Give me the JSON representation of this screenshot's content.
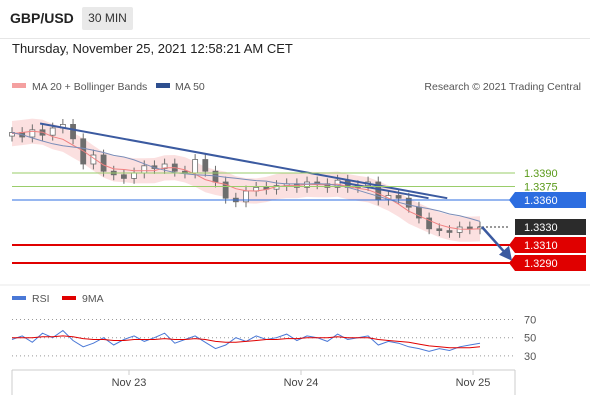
{
  "header": {
    "symbol": "GBP/USD",
    "timeframe": "30 MIN"
  },
  "datetime": "Thursday, November 25, 2021 12:58:21 AM CET",
  "legend": {
    "ma20": "MA 20 + Bollinger Bands",
    "ma50": "MA 50",
    "credit": "Research © 2021 Trading Central",
    "rsi": "RSI",
    "ma9": "9MA"
  },
  "colors": {
    "candle": "#6e6e6e",
    "ma20": "#f08080",
    "bollinger": "#f7c6c6",
    "ma50": "#7a8db8",
    "trendline": "#3b5aa0",
    "support": "#e00000",
    "resistance": "#2c6de0",
    "green_level": "#9acd6a",
    "rsi": "#4a78d6",
    "ma9": "#e00000"
  },
  "chart_data": [
    {
      "type": "candlestick",
      "ylim": [
        1.328,
        1.346
      ],
      "x_labels": [
        "Nov 23",
        "Nov 24",
        "Nov 25"
      ],
      "close_path": [
        1.3435,
        1.343,
        1.3438,
        1.3432,
        1.344,
        1.3444,
        1.3428,
        1.34,
        1.341,
        1.3392,
        1.3388,
        1.3384,
        1.339,
        1.3398,
        1.3395,
        1.34,
        1.3392,
        1.339,
        1.3405,
        1.3392,
        1.338,
        1.3362,
        1.3358,
        1.337,
        1.3374,
        1.3372,
        1.3376,
        1.3378,
        1.3374,
        1.338,
        1.3378,
        1.3374,
        1.3382,
        1.3374,
        1.3376,
        1.338,
        1.336,
        1.3365,
        1.3362,
        1.3352,
        1.334,
        1.3328,
        1.3326,
        1.3324,
        1.333,
        1.3328,
        1.333
      ],
      "levels": [
        {
          "label": "1.3390",
          "value": 1.339,
          "kind": "green"
        },
        {
          "label": "1.3375",
          "value": 1.3375,
          "kind": "green"
        },
        {
          "label": "1.3360",
          "value": 1.336,
          "kind": "resistance"
        },
        {
          "label": "1.3330",
          "value": 1.333,
          "kind": "current"
        },
        {
          "label": "1.3310",
          "value": 1.331,
          "kind": "support"
        },
        {
          "label": "1.3290",
          "value": 1.329,
          "kind": "support"
        }
      ],
      "trendlines": [
        {
          "from": [
            0.06,
            1.3445
          ],
          "to": [
            0.93,
            1.3362
          ]
        },
        {
          "from": [
            0.7,
            1.338
          ],
          "to": [
            0.89,
            1.3362
          ]
        }
      ],
      "forecast_arrow": {
        "from": 1.333,
        "to": 1.3297
      }
    },
    {
      "type": "line",
      "title": "RSI",
      "ylim": [
        20,
        75
      ],
      "yticks": [
        70,
        50,
        30
      ],
      "series": [
        {
          "name": "RSI",
          "values": [
            48,
            52,
            45,
            55,
            50,
            58,
            47,
            40,
            44,
            50,
            42,
            48,
            52,
            46,
            50,
            55,
            44,
            48,
            52,
            45,
            38,
            42,
            50,
            46,
            52,
            48,
            50,
            54,
            47,
            52,
            50,
            46,
            54,
            48,
            50,
            52,
            42,
            46,
            44,
            40,
            38,
            35,
            38,
            36,
            40,
            42,
            44
          ]
        },
        {
          "name": "9MA",
          "values": [
            50,
            50,
            50,
            51,
            51,
            52,
            51,
            49,
            48,
            48,
            47,
            47,
            48,
            48,
            48,
            49,
            48,
            48,
            49,
            48,
            46,
            45,
            45,
            46,
            47,
            48,
            48,
            49,
            49,
            50,
            50,
            50,
            51,
            50,
            50,
            50,
            48,
            47,
            46,
            45,
            43,
            41,
            40,
            39,
            39,
            39,
            40
          ]
        }
      ]
    }
  ]
}
